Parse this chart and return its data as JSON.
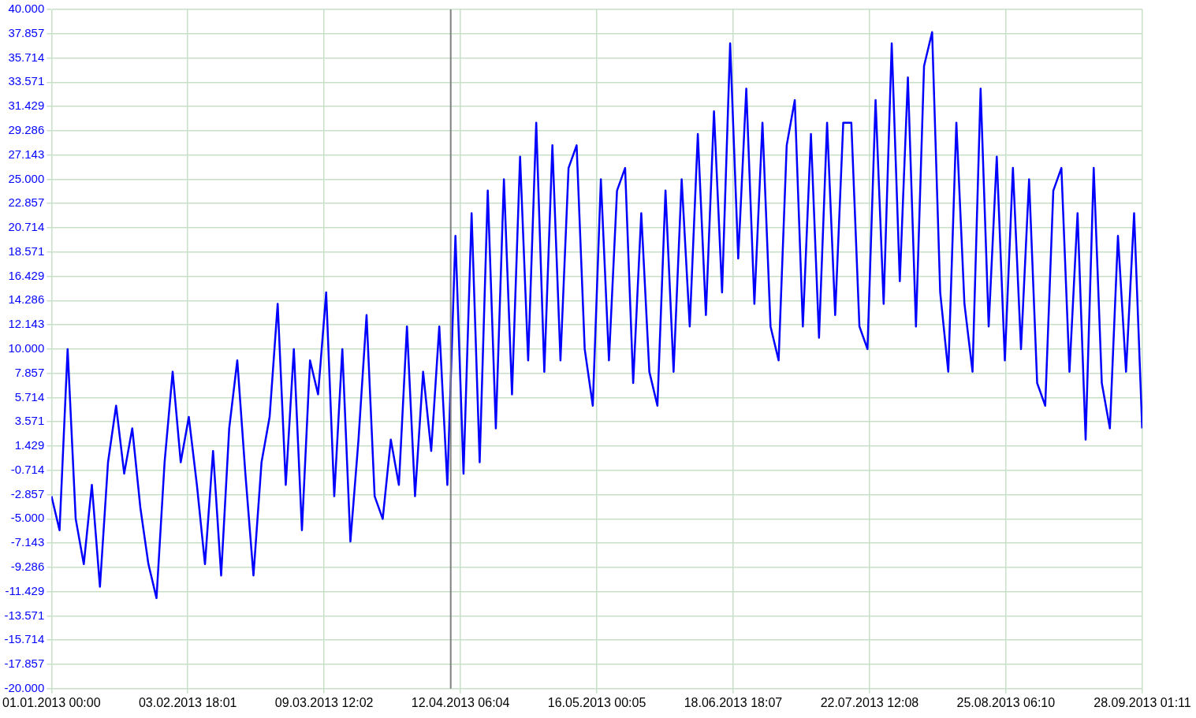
{
  "chart_data": {
    "type": "line",
    "grid": true,
    "marker": "none",
    "line_style": "solid",
    "xlim": [
      "2013-01-01T00:00",
      "2013-09-28T01:11"
    ],
    "xticks": [
      {
        "value": "2013-01-01T00:00",
        "label": "01.01.2013 00:00"
      },
      {
        "value": "2013-02-03T18:01",
        "label": "03.02.2013 18:01"
      },
      {
        "value": "2013-03-09T12:02",
        "label": "09.03.2013 12:02"
      },
      {
        "value": "2013-04-12T06:04",
        "label": "12.04.2013 06:04"
      },
      {
        "value": "2013-05-16T00:05",
        "label": "16.05.2013 00:05"
      },
      {
        "value": "2013-06-18T18:07",
        "label": "18.06.2013 18:07"
      },
      {
        "value": "2013-07-22T12:08",
        "label": "22.07.2013 12:08"
      },
      {
        "value": "2013-08-25T06:10",
        "label": "25.08.2013 06:10"
      },
      {
        "value": "2013-09-28T01:11",
        "label": "28.09.2013 01:11"
      }
    ],
    "ylim": [
      -20,
      40
    ],
    "yticks": [
      {
        "value": -20,
        "label": "-20.000"
      },
      {
        "value": -17.857,
        "label": "-17.857"
      },
      {
        "value": -15.714,
        "label": "-15.714"
      },
      {
        "value": -13.571,
        "label": "-13.571"
      },
      {
        "value": -11.429,
        "label": "-11.429"
      },
      {
        "value": -9.286,
        "label": "-9.286"
      },
      {
        "value": -7.143,
        "label": "-7.143"
      },
      {
        "value": -5,
        "label": "-5.000"
      },
      {
        "value": -2.857,
        "label": "-2.857"
      },
      {
        "value": -0.714,
        "label": "-0.714"
      },
      {
        "value": 1.429,
        "label": "1.429"
      },
      {
        "value": 3.571,
        "label": "3.571"
      },
      {
        "value": 5.714,
        "label": "5.714"
      },
      {
        "value": 7.857,
        "label": "7.857"
      },
      {
        "value": 10,
        "label": "10.000"
      },
      {
        "value": 12.143,
        "label": "12.143"
      },
      {
        "value": 14.286,
        "label": "14.286"
      },
      {
        "value": 16.429,
        "label": "16.429"
      },
      {
        "value": 18.571,
        "label": "18.571"
      },
      {
        "value": 20.714,
        "label": "20.714"
      },
      {
        "value": 22.857,
        "label": "22.857"
      },
      {
        "value": 25,
        "label": "25.000"
      },
      {
        "value": 27.143,
        "label": "27.143"
      },
      {
        "value": 29.286,
        "label": "29.286"
      },
      {
        "value": 31.429,
        "label": "31.429"
      },
      {
        "value": 33.571,
        "label": "33.571"
      },
      {
        "value": 35.714,
        "label": "35.714"
      },
      {
        "value": 37.857,
        "label": "37.857"
      },
      {
        "value": 40,
        "label": "40.000"
      }
    ],
    "ref_lines": [
      {
        "axis": "x",
        "value": "2013-04-09T20:00",
        "color": "#808080"
      }
    ],
    "x": [
      "2013-01-01",
      "2013-01-03",
      "2013-01-05",
      "2013-01-07",
      "2013-01-09",
      "2013-01-11",
      "2013-01-13",
      "2013-01-15",
      "2013-01-17",
      "2013-01-19",
      "2013-01-21",
      "2013-01-23",
      "2013-01-25",
      "2013-01-27",
      "2013-01-29",
      "2013-01-31",
      "2013-02-02",
      "2013-02-04",
      "2013-02-06",
      "2013-02-08",
      "2013-02-10",
      "2013-02-12",
      "2013-02-14",
      "2013-02-16",
      "2013-02-18",
      "2013-02-20",
      "2013-02-22",
      "2013-02-24",
      "2013-02-26",
      "2013-02-28",
      "2013-03-02",
      "2013-03-04",
      "2013-03-06",
      "2013-03-08",
      "2013-03-10",
      "2013-03-12",
      "2013-03-14",
      "2013-03-16",
      "2013-03-18",
      "2013-03-20",
      "2013-03-22",
      "2013-03-24",
      "2013-03-26",
      "2013-03-28",
      "2013-03-30",
      "2013-04-01",
      "2013-04-03",
      "2013-04-05",
      "2013-04-07",
      "2013-04-09",
      "2013-04-11",
      "2013-04-13",
      "2013-04-15",
      "2013-04-17",
      "2013-04-19",
      "2013-04-21",
      "2013-04-23",
      "2013-04-25",
      "2013-04-27",
      "2013-04-29",
      "2013-05-01",
      "2013-05-03",
      "2013-05-05",
      "2013-05-07",
      "2013-05-09",
      "2013-05-11",
      "2013-05-13",
      "2013-05-15",
      "2013-05-17",
      "2013-05-19",
      "2013-05-21",
      "2013-05-23",
      "2013-05-25",
      "2013-05-27",
      "2013-05-29",
      "2013-05-31",
      "2013-06-02",
      "2013-06-04",
      "2013-06-06",
      "2013-06-08",
      "2013-06-10",
      "2013-06-12",
      "2013-06-14",
      "2013-06-16",
      "2013-06-18",
      "2013-06-20",
      "2013-06-22",
      "2013-06-24",
      "2013-06-26",
      "2013-06-28",
      "2013-06-30",
      "2013-07-02",
      "2013-07-04",
      "2013-07-06",
      "2013-07-08",
      "2013-07-10",
      "2013-07-12",
      "2013-07-14",
      "2013-07-16",
      "2013-07-18",
      "2013-07-20",
      "2013-07-22",
      "2013-07-24",
      "2013-07-26",
      "2013-07-28",
      "2013-07-30",
      "2013-08-01",
      "2013-08-03",
      "2013-08-05",
      "2013-08-07",
      "2013-08-09",
      "2013-08-11",
      "2013-08-13",
      "2013-08-15",
      "2013-08-17",
      "2013-08-19",
      "2013-08-21",
      "2013-08-23",
      "2013-08-25",
      "2013-08-27",
      "2013-08-29",
      "2013-08-31",
      "2013-09-02",
      "2013-09-04",
      "2013-09-06",
      "2013-09-08",
      "2013-09-10",
      "2013-09-12",
      "2013-09-14",
      "2013-09-16",
      "2013-09-18",
      "2013-09-20",
      "2013-09-22",
      "2013-09-24",
      "2013-09-26",
      "2013-09-28"
    ],
    "series": [
      {
        "color": "#0000ff",
        "values": [
          -3,
          -6,
          10,
          -5,
          -9,
          -2,
          -11,
          0,
          5,
          -1,
          3,
          -4,
          -9,
          -12,
          0,
          8,
          0,
          4,
          -2,
          -9,
          1,
          -10,
          3,
          9,
          -1,
          -10,
          0,
          4,
          14,
          -2,
          10,
          -6,
          9,
          6,
          15,
          -3,
          10,
          -7,
          2,
          13,
          -3,
          -5,
          2,
          -2,
          12,
          -3,
          8,
          1,
          12,
          -2,
          20,
          -1,
          22,
          0,
          24,
          3,
          25,
          6,
          27,
          9,
          30,
          8,
          28,
          9,
          26,
          28,
          10,
          5,
          25,
          9,
          24,
          26,
          7,
          22,
          8,
          5,
          24,
          8,
          25,
          12,
          29,
          13,
          31,
          15,
          37,
          18,
          33,
          14,
          30,
          12,
          9,
          28,
          32,
          12,
          29,
          11,
          30,
          13,
          30,
          30,
          12,
          10,
          32,
          14,
          37,
          16,
          34,
          12,
          35,
          38,
          15,
          8,
          30,
          14,
          8,
          33,
          12,
          27,
          9,
          26,
          10,
          25,
          7,
          5,
          24,
          26,
          8,
          22,
          2,
          26,
          7,
          3,
          20,
          8,
          22,
          3
        ]
      }
    ]
  }
}
